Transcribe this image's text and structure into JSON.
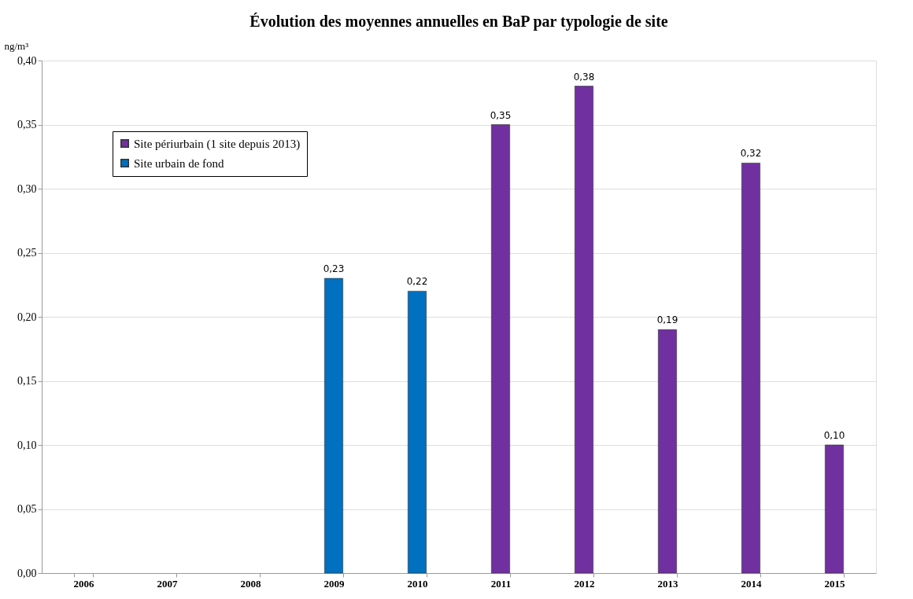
{
  "chart_data": {
    "type": "bar",
    "title": "Évolution des moyennes annuelles en BaP par typologie de site",
    "ylabel": "ng/m³",
    "categories": [
      "2006",
      "2007",
      "2008",
      "2009",
      "2010",
      "2011",
      "2012",
      "2013",
      "2014",
      "2015"
    ],
    "series": [
      {
        "name": "Site périurbain (1 site depuis 2013)",
        "color": "#7030a0",
        "values": [
          null,
          null,
          null,
          null,
          null,
          0.35,
          0.38,
          0.19,
          0.32,
          0.1
        ],
        "value_labels": [
          null,
          null,
          null,
          null,
          null,
          "0,35",
          "0,38",
          "0,19",
          "0,32",
          "0,10"
        ]
      },
      {
        "name": "Site urbain de fond",
        "color": "#0070c0",
        "values": [
          null,
          null,
          null,
          0.23,
          0.22,
          null,
          null,
          null,
          null,
          null
        ],
        "value_labels": [
          null,
          null,
          null,
          "0,23",
          "0,22",
          null,
          null,
          null,
          null,
          null
        ]
      }
    ],
    "ylim": [
      0,
      0.4
    ],
    "yticks": [
      {
        "value": 0,
        "label": "0,00"
      },
      {
        "value": 0.05,
        "label": "0,05"
      },
      {
        "value": 0.1,
        "label": "0,10"
      },
      {
        "value": 0.15,
        "label": "0,15"
      },
      {
        "value": 0.2,
        "label": "0,20"
      },
      {
        "value": 0.25,
        "label": "0,25"
      },
      {
        "value": 0.3,
        "label": "0,30"
      },
      {
        "value": 0.35,
        "label": "0,35"
      },
      {
        "value": 0.4,
        "label": "0,40"
      }
    ],
    "grid": "y",
    "legend": "top left"
  }
}
